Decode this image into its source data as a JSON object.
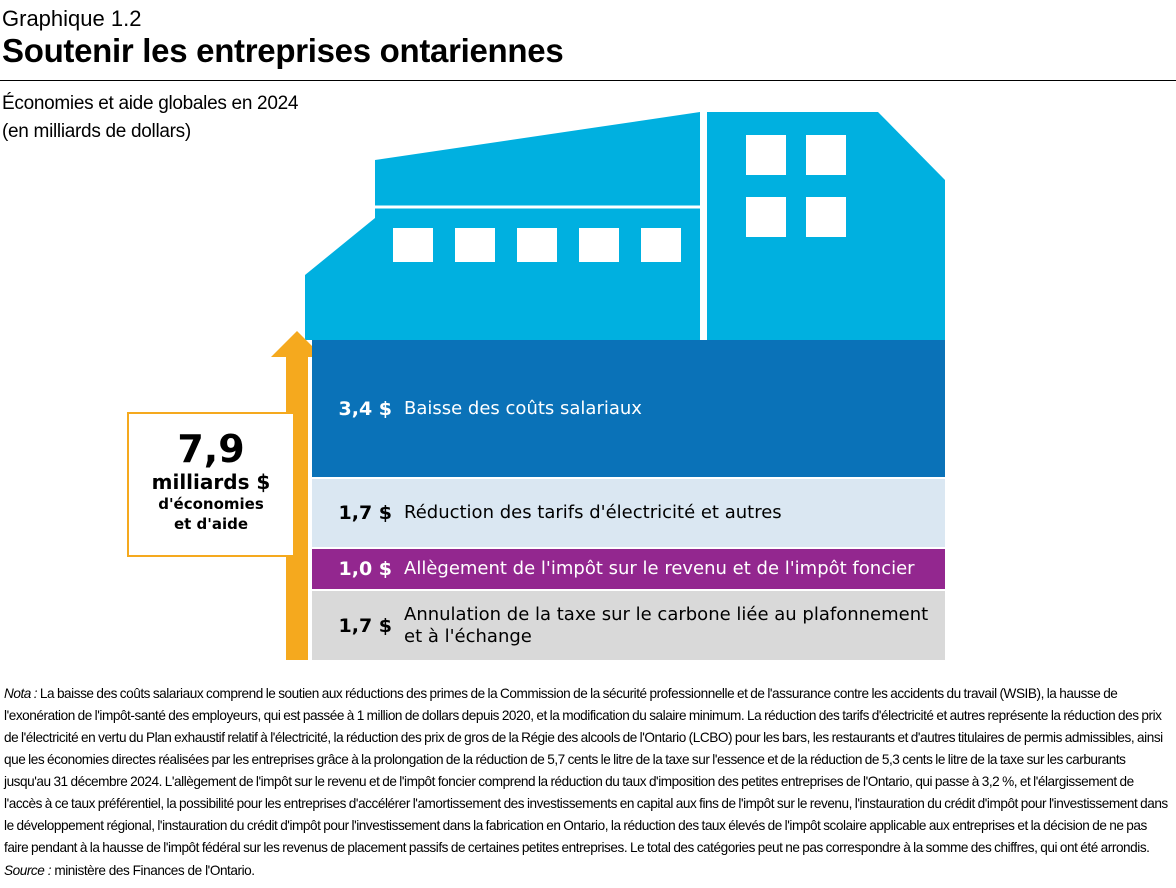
{
  "header": {
    "kicker": "Graphique 1.2",
    "title": "Soutenir les entreprises ontariennes"
  },
  "subtitle": {
    "line1": "Économies et aide globales en 2024",
    "line2": "(en milliards de dollars)"
  },
  "total": {
    "value": "7,9",
    "unit": "milliards $",
    "desc1": "d'économies",
    "desc2": "et d'aide"
  },
  "colors": {
    "building": "#00b0e0",
    "wage": "#0a72b8",
    "electricity": "#dae7f2",
    "tax": "#93278f",
    "carbon": "#d9d9d9",
    "arrow": "#f5a91e"
  },
  "chart_data": {
    "type": "bar",
    "stacked": true,
    "categories": [
      "Baisse des coûts salariaux",
      "Réduction des tarifs d'électricité et autres",
      "Allègement de l'impôt sur le revenu et de l'impôt foncier",
      "Annulation de la taxe sur le carbone liée au plafonnement et à l'échange"
    ],
    "values": [
      3.4,
      1.7,
      1.0,
      1.7
    ],
    "value_labels": [
      "3,4 $",
      "1,7 $",
      "1,0 $",
      "1,7 $"
    ],
    "total": 7.9
  },
  "note": {
    "label": "Nota :",
    "text": " La baisse des coûts salariaux comprend le soutien aux réductions des primes de la Commission de la sécurité professionnelle et de l'assurance contre les accidents du travail (WSIB), la hausse de l'exonération de l'impôt-santé des employeurs, qui est passée à 1 million de dollars depuis 2020, et la modification du salaire minimum. La réduction des tarifs d'électricité et autres représente la réduction des prix de l'électricité en vertu du Plan exhaustif relatif à l'électricité, la réduction des prix de gros de la Régie des alcools de l'Ontario (LCBO) pour les bars, les restaurants et d'autres titulaires de permis admissibles, ainsi que les économies directes réalisées par les entreprises grâce à la prolongation de la réduction de 5,7 cents le litre de la taxe sur l'essence et de la réduction de 5,3 cents le litre de la taxe sur les carburants jusqu'au 31 décembre 2024. L'allègement de l'impôt sur le revenu et de l'impôt foncier comprend la réduction du taux d'imposition des petites entreprises de l'Ontario, qui passe à 3,2 %, et l'élargissement de l'accès à ce taux préférentiel, la possibilité pour les entreprises d'accélérer l'amortissement des investissements en capital aux fins de l'impôt sur le revenu, l'instauration du crédit d'impôt pour l'investissement dans le développement régional, l'instauration du crédit d'impôt pour l'investissement dans la fabrication en Ontario, la réduction des taux élevés de l'impôt scolaire applicable aux entreprises et la décision de ne pas faire pendant à la hausse de l'impôt fédéral sur les revenus de placement passifs de certaines petites entreprises. Le total des catégories peut ne pas correspondre à la somme des chiffres, qui ont été arrondis."
  },
  "source": {
    "label": "Source :",
    "text": " ministère des Finances de l'Ontario."
  }
}
